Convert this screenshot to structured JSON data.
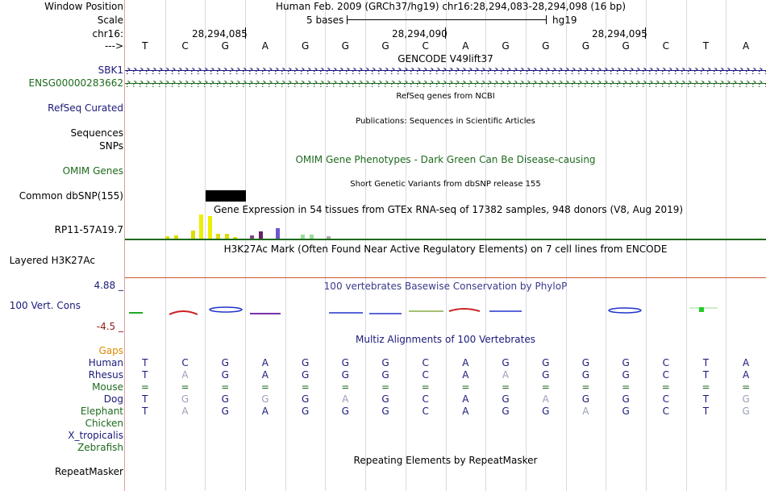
{
  "header": {
    "window_position_label": "Window Position",
    "window_position_text": "Human Feb. 2009 (GRCh37/hg19)   chr16:28,294,083-28,294,098 (16 bp)",
    "scale_label": "Scale",
    "scale_text": "5 bases",
    "scale_assembly": "hg19",
    "chrom_label": "chr16:",
    "arrow_label": "--->",
    "coords": [
      "28,294,085",
      "28,294,090",
      "28,294,095"
    ]
  },
  "sequence": [
    "T",
    "C",
    "G",
    "A",
    "G",
    "G",
    "G",
    "C",
    "A",
    "G",
    "G",
    "G",
    "G",
    "C",
    "T",
    "A"
  ],
  "tracks": {
    "gencode_title": "GENCODE V49lift37",
    "gene1": "SBK1",
    "gene2": "ENSG00000283662",
    "refseq_label": "RefSeq Curated",
    "refseq_title": "RefSeq genes from NCBI",
    "sequences_label": "Sequences",
    "pubs_title": "Publications: Sequences in Scientific Articles",
    "snps_label": "SNPs",
    "omim_title": "OMIM Gene Phenotypes - Dark Green Can Be Disease-causing",
    "omim_label": "OMIM Genes",
    "dbsnp_title": "Short Genetic Variants from dbSNP release 155",
    "dbsnp_label": "Common dbSNP(155)",
    "gtex_title": "Gene Expression in 54 tissues from GTEx RNA-seq of 17382 samples, 948 donors (V8, Aug 2019)",
    "gtex_label": "RP11-57A19.7",
    "h3k27ac_title": "H3K27Ac Mark (Often Found Near Active Regulatory Elements) on 7 cell lines from ENCODE",
    "h3k27ac_label": "Layered H3K27Ac",
    "cons_max": "4.88 _",
    "cons_title": "100 vertebrates Basewise Conservation by PhyloP",
    "cons_label": "100 Vert. Cons",
    "cons_min": "-4.5 _",
    "multiz_title": "Multiz Alignments of 100 Vertebrates",
    "gaps_label": "Gaps",
    "repeat_title": "Repeating Elements by RepeatMasker",
    "repeat_label": "RepeatMasker"
  },
  "gtex_values": [
    3,
    4,
    0,
    10,
    30,
    28,
    6,
    6,
    2,
    0,
    4,
    9,
    0,
    13,
    0,
    0,
    5,
    5,
    0,
    3
  ],
  "gtex_colors": [
    "#dddd00",
    "#dddd00",
    "#dddd00",
    "#dddd00",
    "#eeee00",
    "#eeee00",
    "#dddd00",
    "#dddd00",
    "#dddd00",
    "#dddd00",
    "#884488",
    "#662266",
    "#aaaaaa",
    "#6a5acd",
    "#aaaaaa",
    "#aaaaaa",
    "#99dd99",
    "#99dd99",
    "#aaaaaa",
    "#aaaaaa"
  ],
  "alignments": [
    {
      "species": "Human",
      "color": "#1a1a7a",
      "bases": [
        "T",
        "C",
        "G",
        "A",
        "G",
        "G",
        "G",
        "C",
        "A",
        "G",
        "G",
        "G",
        "G",
        "C",
        "T",
        "A"
      ]
    },
    {
      "species": "Rhesus",
      "color": "#1a1a7a",
      "bases": [
        "T",
        "A",
        "G",
        "A",
        "G",
        "G",
        "G",
        "C",
        "A",
        "A",
        "G",
        "G",
        "G",
        "C",
        "T",
        "A"
      ]
    },
    {
      "species": "Mouse",
      "color": "#1e6a1e",
      "bases": [
        "=",
        "=",
        "=",
        "=",
        "=",
        "=",
        "=",
        "=",
        "=",
        "=",
        "=",
        "=",
        "=",
        "=",
        "=",
        "="
      ]
    },
    {
      "species": "Dog",
      "color": "#1a1a7a",
      "bases": [
        "T",
        "G",
        "G",
        "G",
        "G",
        "A",
        "G",
        "C",
        "A",
        "G",
        "A",
        "G",
        "G",
        "C",
        "T",
        "G"
      ]
    },
    {
      "species": "Elephant",
      "color": "#1e6a1e",
      "bases": [
        "T",
        "A",
        "G",
        "A",
        "G",
        "G",
        "G",
        "C",
        "A",
        "G",
        "G",
        "A",
        "G",
        "C",
        "T",
        "G"
      ]
    },
    {
      "species": "Chicken",
      "color": "#1e6a1e",
      "bases": []
    },
    {
      "species": "X_tropicalis",
      "color": "#1a1a7a",
      "bases": []
    },
    {
      "species": "Zebrafish",
      "color": "#1e6a1e",
      "bases": []
    }
  ],
  "faded_bases": {
    "Rhesus": [
      1,
      9
    ],
    "Dog": [
      1,
      3,
      5,
      10,
      15
    ],
    "Elephant": [
      1,
      11,
      15
    ]
  },
  "colors": {
    "separator": "#e0a0a0",
    "gencode_blue": "#1a1a7a",
    "gencode_green": "#1e6a1e",
    "phylop_title": "#3a3a8a",
    "cons_min_color": "#8b1a1a",
    "h3k27ac_line": "#cc5533",
    "gtex_line": "#1e6a1e",
    "faded_base": "#9aa0b8"
  }
}
